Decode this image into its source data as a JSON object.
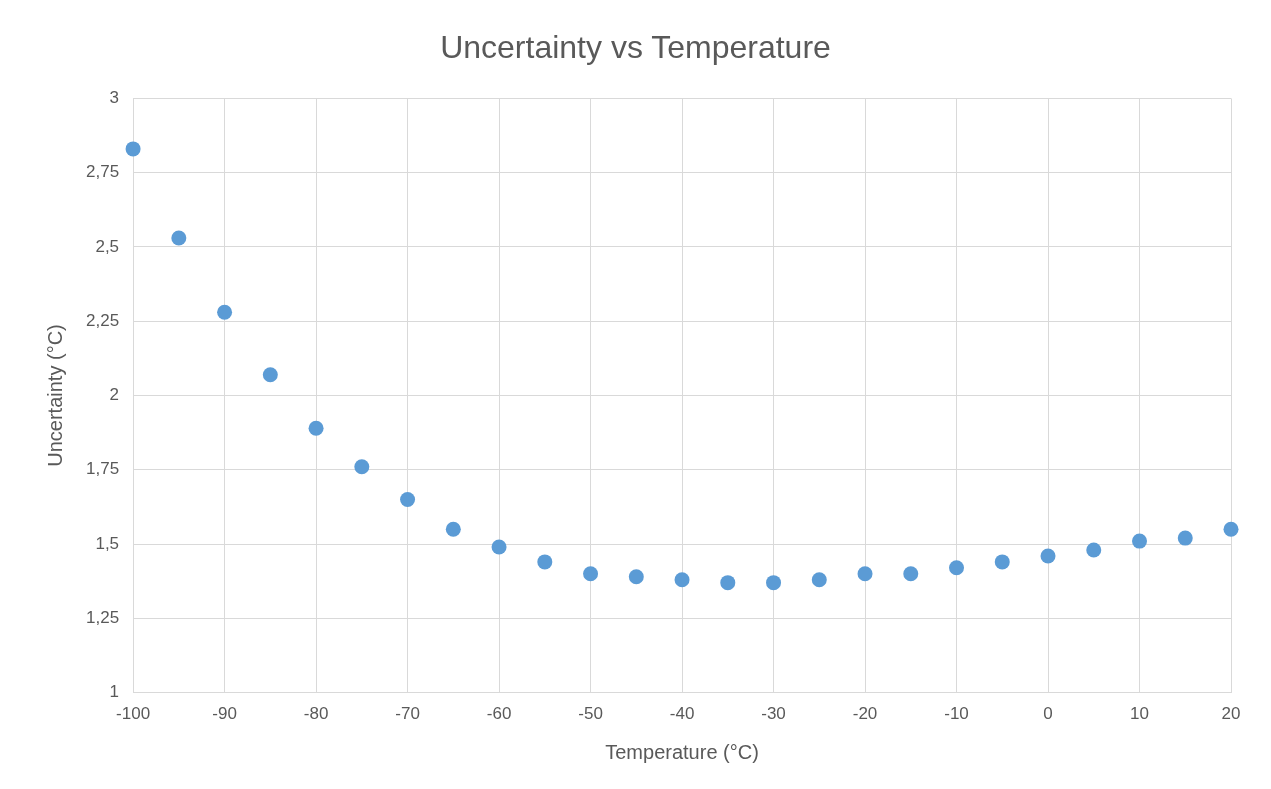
{
  "chart_data": {
    "type": "scatter",
    "title": "Uncertainty vs Temperature",
    "xlabel": "Temperature (°C)",
    "ylabel": "Uncertainty (°C)",
    "x": [
      -100,
      -95,
      -90,
      -85,
      -80,
      -75,
      -70,
      -65,
      -60,
      -55,
      -50,
      -45,
      -40,
      -35,
      -30,
      -25,
      -20,
      -15,
      -10,
      -5,
      0,
      5,
      10,
      15,
      20
    ],
    "series": [
      {
        "color": "#5b9bd5",
        "values": [
          2.83,
          2.53,
          2.28,
          2.07,
          1.89,
          1.76,
          1.65,
          1.55,
          1.49,
          1.44,
          1.4,
          1.39,
          1.38,
          1.37,
          1.37,
          1.38,
          1.4,
          1.4,
          1.42,
          1.44,
          1.46,
          1.48,
          1.51,
          1.52,
          1.55
        ]
      }
    ],
    "xlim": [
      -100,
      20
    ],
    "xticks": [
      -100,
      -90,
      -80,
      -70,
      -60,
      -50,
      -40,
      -30,
      -20,
      -10,
      0,
      10,
      20
    ],
    "ylim": [
      1,
      3
    ],
    "yticks": [
      1,
      {
        "value": 1.25,
        "label": "1,25"
      },
      {
        "value": 1.5,
        "label": "1,5"
      },
      {
        "value": 1.75,
        "label": "1,75"
      },
      2,
      {
        "value": 2.25,
        "label": "2,25"
      },
      {
        "value": 2.5,
        "label": "2,5"
      },
      {
        "value": 2.75,
        "label": "2,75"
      },
      3
    ],
    "grid": true,
    "legend": false,
    "marker": "circle"
  }
}
